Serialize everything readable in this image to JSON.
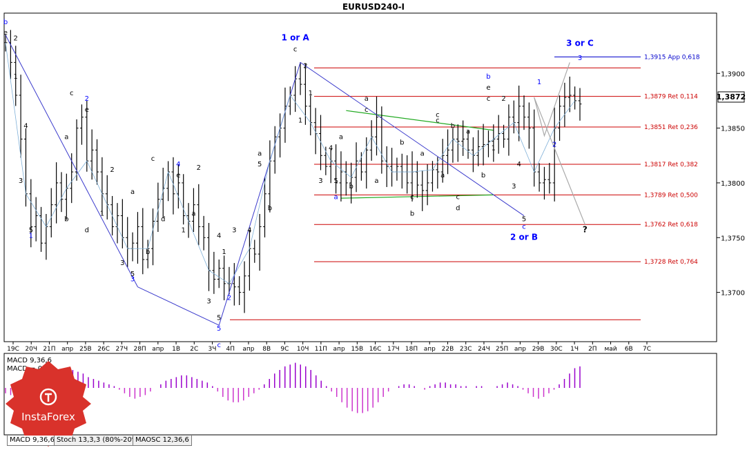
{
  "title": "EURUSD240-I",
  "current_price": "1,3872",
  "colors": {
    "candles": "#000000",
    "wave_blue": "#0000ff",
    "wave_line": "#3a3acc",
    "fib_red": "#cc0000",
    "green": "#22aa22",
    "macd_positive": "#9900cc",
    "macd_negative": "#cc33cc",
    "projection": "#aaaaaa",
    "axis": "#000000"
  },
  "chart_data": {
    "type": "candlestick",
    "ylim": [
      1.3655,
      1.3955
    ],
    "y_ticks": [
      "1,3900",
      "1,3850",
      "1,3800",
      "1,3750",
      "1,3700"
    ],
    "y_tick_values": [
      1.39,
      1.385,
      1.38,
      1.375,
      1.37
    ],
    "x_ticks": [
      "19C",
      "20Ч",
      "21П",
      "апр",
      "25В",
      "26С",
      "27Ч",
      "28П",
      "апр",
      "1В",
      "2С",
      "3Ч",
      "4П",
      "апр",
      "8В",
      "9С",
      "10Ч",
      "11П",
      "апр",
      "15В",
      "16С",
      "17Ч",
      "18П",
      "апр",
      "22В",
      "23С",
      "24Ч",
      "25П",
      "апр",
      "29В",
      "30С",
      "1Ч",
      "2П",
      "май",
      "6В",
      "7С"
    ],
    "fib_levels": [
      {
        "price": 1.3915,
        "label": "1,3915 App 0,618",
        "color": "#0000cc"
      },
      {
        "price": 1.3879,
        "label": "1,3879 Ret 0,114",
        "color": "#cc0000"
      },
      {
        "price": 1.3851,
        "label": "1,3851 Ret 0,236",
        "color": "#cc0000"
      },
      {
        "price": 1.3817,
        "label": "1,3817 Ret 0,382",
        "color": "#cc0000"
      },
      {
        "price": 1.3789,
        "label": "1,3789 Ret 0,500",
        "color": "#cc0000"
      },
      {
        "price": 1.3762,
        "label": "1,3762 Ret 0,618",
        "color": "#cc0000"
      },
      {
        "price": 1.3728,
        "label": "1,3728 Ret 0,764",
        "color": "#cc0000"
      }
    ],
    "extra_levels": [
      1.3905,
      1.3675
    ],
    "closes": [
      1.3928,
      1.391,
      1.388,
      1.384,
      1.379,
      1.376,
      1.377,
      1.3745,
      1.376,
      1.378,
      1.38,
      1.3785,
      1.3795,
      1.381,
      1.385,
      1.386,
      1.382,
      1.383,
      1.381,
      1.379,
      1.378,
      1.376,
      1.377,
      1.375,
      1.374,
      1.3745,
      1.376,
      1.373,
      1.374,
      1.3765,
      1.3785,
      1.3795,
      1.381,
      1.379,
      1.38,
      1.377,
      1.3765,
      1.378,
      1.376,
      1.375,
      1.372,
      1.3712,
      1.3722,
      1.3708,
      1.3708,
      1.3705,
      1.37,
      1.3715,
      1.374,
      1.3735,
      1.376,
      1.379,
      1.382,
      1.3842,
      1.385,
      1.387,
      1.388,
      1.3895,
      1.389,
      1.387,
      1.3855,
      1.3845,
      1.3825,
      1.3815,
      1.382,
      1.38,
      1.381,
      1.38,
      1.3805,
      1.382,
      1.381,
      1.383,
      1.3842,
      1.386,
      1.382,
      1.3815,
      1.381,
      1.3815,
      1.381,
      1.38,
      1.381,
      1.3798,
      1.3793,
      1.38,
      1.3812,
      1.381,
      1.3825,
      1.383,
      1.384,
      1.3838,
      1.384,
      1.383,
      1.3825,
      1.3833,
      1.3835,
      1.3838,
      1.384,
      1.3845,
      1.384,
      1.386,
      1.3855,
      1.387,
      1.386,
      1.385,
      1.381,
      1.38,
      1.3803,
      1.38,
      1.385,
      1.387,
      1.3878,
      1.388,
      1.3875,
      1.3872
    ],
    "wave_points": [
      {
        "idx": 0,
        "price": 1.3935
      },
      {
        "idx": 26,
        "price": 1.3705
      },
      {
        "idx": 42,
        "price": 1.367
      },
      {
        "idx": 58,
        "price": 1.391
      },
      {
        "idx": 102,
        "price": 1.377
      }
    ],
    "wave_labels": [
      {
        "text": "b",
        "idx": 0,
        "price": 1.3945,
        "color": "blue"
      },
      {
        "text": "e",
        "idx": 0,
        "price": 1.3935,
        "color": "black"
      },
      {
        "text": "2",
        "idx": 2,
        "price": 1.393,
        "color": "black"
      },
      {
        "text": "1",
        "idx": 2,
        "price": 1.3895,
        "color": "black"
      },
      {
        "text": "4",
        "idx": 4,
        "price": 1.385,
        "color": "black"
      },
      {
        "text": "3",
        "idx": 3,
        "price": 1.38,
        "color": "black"
      },
      {
        "text": "5",
        "idx": 5,
        "price": 1.3755,
        "color": "black"
      },
      {
        "text": "1",
        "idx": 5,
        "price": 1.375,
        "color": "blue"
      },
      {
        "text": "c",
        "idx": 13,
        "price": 1.388,
        "color": "black"
      },
      {
        "text": "a",
        "idx": 12,
        "price": 1.384,
        "color": "black"
      },
      {
        "text": "b",
        "idx": 12,
        "price": 1.3765,
        "color": "black"
      },
      {
        "text": "d",
        "idx": 16,
        "price": 1.3755,
        "color": "black"
      },
      {
        "text": "2",
        "idx": 16,
        "price": 1.3875,
        "color": "blue"
      },
      {
        "text": "e",
        "idx": 16,
        "price": 1.3865,
        "color": "black"
      },
      {
        "text": "1",
        "idx": 19,
        "price": 1.377,
        "color": "black"
      },
      {
        "text": "2",
        "idx": 21,
        "price": 1.381,
        "color": "black"
      },
      {
        "text": "a",
        "idx": 25,
        "price": 1.379,
        "color": "black"
      },
      {
        "text": "3",
        "idx": 23,
        "price": 1.3725,
        "color": "black"
      },
      {
        "text": "5",
        "idx": 25,
        "price": 1.3715,
        "color": "black"
      },
      {
        "text": "3",
        "idx": 25,
        "price": 1.371,
        "color": "blue"
      },
      {
        "text": "b",
        "idx": 28,
        "price": 1.3735,
        "color": "black"
      },
      {
        "text": "c",
        "idx": 29,
        "price": 1.382,
        "color": "black"
      },
      {
        "text": "4",
        "idx": 34,
        "price": 1.3815,
        "color": "blue"
      },
      {
        "text": "e",
        "idx": 34,
        "price": 1.3805,
        "color": "black"
      },
      {
        "text": "d",
        "idx": 31,
        "price": 1.3765,
        "color": "black"
      },
      {
        "text": "1",
        "idx": 35,
        "price": 1.3755,
        "color": "black"
      },
      {
        "text": "2",
        "idx": 38,
        "price": 1.3812,
        "color": "black"
      },
      {
        "text": "a",
        "idx": 37,
        "price": 1.377,
        "color": "black"
      },
      {
        "text": "3",
        "idx": 40,
        "price": 1.369,
        "color": "black"
      },
      {
        "text": "4",
        "idx": 42,
        "price": 1.375,
        "color": "black"
      },
      {
        "text": "1",
        "idx": 43,
        "price": 1.3735,
        "color": "black"
      },
      {
        "text": "2",
        "idx": 44,
        "price": 1.3693,
        "color": "blue"
      },
      {
        "text": "5",
        "idx": 42,
        "price": 1.3665,
        "color": "blue"
      },
      {
        "text": "c",
        "idx": 42,
        "price": 1.365,
        "color": "blue"
      },
      {
        "text": "5",
        "idx": 42,
        "price": 1.3675,
        "color": "black"
      },
      {
        "text": "3",
        "idx": 45,
        "price": 1.3755,
        "color": "black"
      },
      {
        "text": "4",
        "idx": 48,
        "price": 1.3755,
        "color": "black"
      },
      {
        "text": "5",
        "idx": 50,
        "price": 1.3815,
        "color": "black"
      },
      {
        "text": "a",
        "idx": 50,
        "price": 1.3825,
        "color": "black"
      },
      {
        "text": "b",
        "idx": 52,
        "price": 1.3775,
        "color": "black"
      },
      {
        "text": "1 or A",
        "idx": 57,
        "price": 1.393,
        "color": "blue"
      },
      {
        "text": "c",
        "idx": 57,
        "price": 1.392,
        "color": "black"
      },
      {
        "text": "2",
        "idx": 59,
        "price": 1.3905,
        "color": "black"
      },
      {
        "text": "1",
        "idx": 60,
        "price": 1.388,
        "color": "black"
      },
      {
        "text": "1",
        "idx": 58,
        "price": 1.3855,
        "color": "black"
      },
      {
        "text": "4",
        "idx": 64,
        "price": 1.383,
        "color": "black"
      },
      {
        "text": "3",
        "idx": 62,
        "price": 1.38,
        "color": "black"
      },
      {
        "text": "5",
        "idx": 65,
        "price": 1.38,
        "color": "black"
      },
      {
        "text": "a",
        "idx": 65,
        "price": 1.3785,
        "color": "blue"
      },
      {
        "text": "a",
        "idx": 66,
        "price": 1.384,
        "color": "black"
      },
      {
        "text": "b",
        "idx": 68,
        "price": 1.3795,
        "color": "black"
      },
      {
        "text": "a",
        "idx": 71,
        "price": 1.3875,
        "color": "black"
      },
      {
        "text": "c",
        "idx": 71,
        "price": 1.3865,
        "color": "black"
      },
      {
        "text": "a",
        "idx": 73,
        "price": 1.38,
        "color": "black"
      },
      {
        "text": "b",
        "idx": 78,
        "price": 1.3835,
        "color": "black"
      },
      {
        "text": "a",
        "idx": 82,
        "price": 1.3825,
        "color": "black"
      },
      {
        "text": "c",
        "idx": 80,
        "price": 1.3785,
        "color": "black"
      },
      {
        "text": "b",
        "idx": 80,
        "price": 1.377,
        "color": "black"
      },
      {
        "text": "a",
        "idx": 86,
        "price": 1.3805,
        "color": "black"
      },
      {
        "text": "c",
        "idx": 85,
        "price": 1.386,
        "color": "black"
      },
      {
        "text": "c",
        "idx": 85,
        "price": 1.3855,
        "color": "black"
      },
      {
        "text": "b",
        "idx": 88,
        "price": 1.385,
        "color": "black"
      },
      {
        "text": "c",
        "idx": 89,
        "price": 1.3785,
        "color": "black"
      },
      {
        "text": "d",
        "idx": 89,
        "price": 1.3775,
        "color": "black"
      },
      {
        "text": "a",
        "idx": 91,
        "price": 1.3845,
        "color": "black"
      },
      {
        "text": "b",
        "idx": 94,
        "price": 1.3805,
        "color": "black"
      },
      {
        "text": "b",
        "idx": 95,
        "price": 1.3895,
        "color": "blue"
      },
      {
        "text": "e",
        "idx": 95,
        "price": 1.3885,
        "color": "black"
      },
      {
        "text": "c",
        "idx": 95,
        "price": 1.3875,
        "color": "black"
      },
      {
        "text": "1",
        "idx": 96,
        "price": 1.383,
        "color": "black"
      },
      {
        "text": "2",
        "idx": 98,
        "price": 1.3875,
        "color": "black"
      },
      {
        "text": "3",
        "idx": 100,
        "price": 1.3795,
        "color": "black"
      },
      {
        "text": "4",
        "idx": 101,
        "price": 1.3815,
        "color": "black"
      },
      {
        "text": "5",
        "idx": 102,
        "price": 1.3765,
        "color": "black"
      },
      {
        "text": "c",
        "idx": 102,
        "price": 1.3758,
        "color": "blue"
      },
      {
        "text": "2 or B",
        "idx": 102,
        "price": 1.3748,
        "color": "blue"
      },
      {
        "text": "1",
        "idx": 105,
        "price": 1.389,
        "color": "blue"
      },
      {
        "text": "2",
        "idx": 108,
        "price": 1.3833,
        "color": "blue"
      },
      {
        "text": "3",
        "idx": 113,
        "price": 1.3912,
        "color": "blue"
      },
      {
        "text": "3 or C",
        "idx": 113,
        "price": 1.3925,
        "color": "blue"
      },
      {
        "text": "?",
        "idx": 114,
        "price": 1.3755,
        "color": "black"
      }
    ],
    "green_lines": [
      {
        "from": {
          "idx": 66,
          "price": 1.3786
        },
        "to": {
          "idx": 96,
          "price": 1.3789
        }
      },
      {
        "from": {
          "idx": 67,
          "price": 1.3866
        },
        "to": {
          "idx": 96,
          "price": 1.3848
        }
      }
    ],
    "projection": [
      {
        "idx": 104,
        "price": 1.3878
      },
      {
        "idx": 106,
        "price": 1.3843
      },
      {
        "idx": 111,
        "price": 1.391
      }
    ],
    "projection_alt": [
      {
        "idx": 104,
        "price": 1.3878
      },
      {
        "idx": 114,
        "price": 1.3762
      }
    ],
    "macd": {
      "label1": "MACD 9,36,6",
      "label2": "MACD = 0,00",
      "values": [
        -3,
        -4,
        -5,
        -6,
        -6,
        -5,
        -4,
        -2,
        1,
        3,
        5,
        7,
        9,
        10,
        9,
        8,
        6,
        5,
        4,
        3,
        2,
        1,
        -1,
        -3,
        -5,
        -6,
        -5,
        -4,
        -2,
        0,
        2,
        4,
        5,
        6,
        7,
        7,
        6,
        5,
        4,
        3,
        1,
        -2,
        -5,
        -7,
        -8,
        -8,
        -7,
        -5,
        -3,
        -1,
        2,
        5,
        8,
        10,
        12,
        13,
        14,
        13,
        12,
        10,
        7,
        4,
        1,
        -2,
        -5,
        -8,
        -11,
        -13,
        -14,
        -14,
        -13,
        -11,
        -8,
        -5,
        -2,
        0,
        1,
        2,
        2,
        1,
        0,
        -1,
        1,
        2,
        3,
        3,
        2,
        2,
        1,
        1,
        0,
        1,
        1,
        0,
        0,
        1,
        2,
        3,
        2,
        1,
        -1,
        -3,
        -5,
        -6,
        -5,
        -3,
        -1,
        2,
        5,
        8,
        11,
        12
      ]
    }
  },
  "tabs": [
    "MACD 9,36,6",
    "Stoch 13,3,3 (80%-20%)",
    "MAOSC 12,36,6"
  ],
  "logo_text": "InstaForex"
}
